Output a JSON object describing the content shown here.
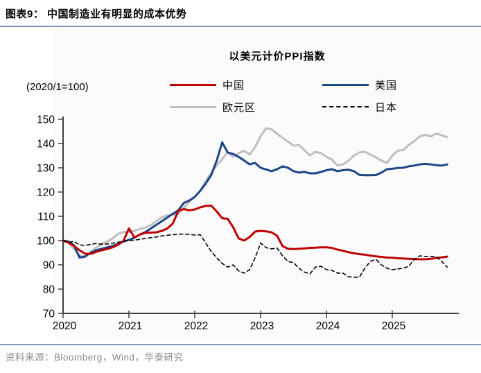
{
  "header": {
    "title": "图表9：  中国制造业有明显的成本优势"
  },
  "chart": {
    "title": "以美元计价PPI指数",
    "unit_note": "(2020/1=100)",
    "legend": [
      {
        "label": "中国",
        "color": "#C00000",
        "dashed": false
      },
      {
        "label": "美国",
        "color": "#1C4587",
        "dashed": false
      },
      {
        "label": "欧元区",
        "color": "#BFBFBF",
        "dashed": false
      },
      {
        "label": "日本",
        "color": "#000000",
        "dashed": true
      }
    ]
  },
  "chart_data": {
    "type": "line",
    "title": "以美元计价PPI指数",
    "subtitle": "(2020/1=100)",
    "x_start": "2020-01",
    "x_frequency": "monthly",
    "x_tick_labels": [
      "2020",
      "2021",
      "2022",
      "2023",
      "2024",
      "2025"
    ],
    "y_ticks": [
      70,
      80,
      90,
      100,
      110,
      120,
      130,
      140,
      150
    ],
    "ylim": [
      70,
      150
    ],
    "grid": false,
    "legend_position": "top",
    "series": [
      {
        "name": "中国",
        "color": "#C00000",
        "dashed": false,
        "values": [
          100,
          99.2,
          97.8,
          96.0,
          94.6,
          94.5,
          95.3,
          96.0,
          96.5,
          97.2,
          98.2,
          99.8,
          105.0,
          101.3,
          102.5,
          103.2,
          103.3,
          103.4,
          104.0,
          105.0,
          107.0,
          112.3,
          113.0,
          112.5,
          112.8,
          113.7,
          114.3,
          114.4,
          112.0,
          109.2,
          109.0,
          105.5,
          100.9,
          100.0,
          101.5,
          103.7,
          104.0,
          103.8,
          103.4,
          102.0,
          97.7,
          96.6,
          96.5,
          96.6,
          96.8,
          97.0,
          97.1,
          97.2,
          97.2,
          97.0,
          96.3,
          95.8,
          95.2,
          94.8,
          94.4,
          94.2,
          93.8,
          93.5,
          93.3,
          93.0,
          92.9,
          92.7,
          92.6,
          92.5,
          92.4,
          92.3,
          92.3,
          92.5,
          92.8,
          93.1,
          93.4
        ]
      },
      {
        "name": "美国",
        "color": "#1C4587",
        "dashed": false,
        "values": [
          100,
          99.6,
          98.0,
          93.0,
          93.4,
          95.0,
          96.0,
          96.6,
          97.2,
          97.8,
          98.6,
          99.6,
          100.3,
          101.2,
          102.5,
          103.5,
          105.0,
          106.5,
          108.0,
          109.5,
          111.0,
          112.5,
          115.5,
          116.5,
          118.0,
          120.5,
          123.5,
          127.0,
          133.0,
          140.5,
          136.3,
          135.7,
          134.5,
          133.0,
          131.4,
          132.0,
          130.0,
          129.3,
          128.6,
          129.4,
          130.6,
          130.0,
          128.6,
          128.0,
          128.3,
          127.7,
          127.7,
          128.3,
          129.0,
          129.4,
          128.6,
          129.0,
          129.2,
          128.6,
          127.1,
          126.9,
          126.9,
          127.0,
          128.0,
          129.4,
          129.6,
          129.9,
          130.0,
          130.6,
          130.9,
          131.4,
          131.6,
          131.4,
          131.1,
          130.9,
          131.4
        ]
      },
      {
        "name": "欧元区",
        "color": "#BFBFBF",
        "dashed": false,
        "values": [
          100,
          99.0,
          96.5,
          94.0,
          93.4,
          95.2,
          97.0,
          98.6,
          99.6,
          100.8,
          102.8,
          103.5,
          103.6,
          104.0,
          104.8,
          105.4,
          106.4,
          108.0,
          109.6,
          110.4,
          110.6,
          111.0,
          113.5,
          116.0,
          118.0,
          120.5,
          124.5,
          128.0,
          131.0,
          133.5,
          136.5,
          134.5,
          136.0,
          137.0,
          135.5,
          138.5,
          143.0,
          146.3,
          145.8,
          144.0,
          142.3,
          140.8,
          139.1,
          139.4,
          137.2,
          135.1,
          136.6,
          136.0,
          134.5,
          133.4,
          130.9,
          131.4,
          132.9,
          135.0,
          136.3,
          136.6,
          135.5,
          134.3,
          132.9,
          132.0,
          134.9,
          137.1,
          137.3,
          139.4,
          140.9,
          142.9,
          143.6,
          142.9,
          144.1,
          143.4,
          142.6
        ]
      },
      {
        "name": "日本",
        "color": "#000000",
        "dashed": true,
        "values": [
          100,
          99.3,
          99.6,
          98.2,
          98.0,
          98.4,
          98.8,
          98.5,
          98.6,
          98.9,
          99.3,
          99.8,
          100.0,
          100.2,
          100.5,
          100.9,
          101.2,
          101.5,
          101.9,
          102.2,
          102.4,
          102.6,
          102.7,
          102.5,
          102.3,
          102.4,
          99.0,
          95.5,
          92.9,
          90.6,
          89.1,
          90.0,
          87.5,
          86.6,
          88.0,
          92.9,
          99.0,
          97.1,
          96.6,
          96.9,
          93.7,
          91.4,
          90.9,
          88.6,
          87.0,
          86.3,
          89.1,
          89.4,
          88.0,
          87.7,
          86.6,
          86.6,
          85.1,
          84.9,
          84.9,
          88.6,
          91.4,
          92.3,
          90.0,
          88.6,
          88.0,
          88.3,
          88.6,
          89.4,
          92.3,
          93.7,
          93.5,
          93.4,
          93.4,
          91.4,
          89.1
        ]
      }
    ]
  },
  "footer": {
    "source": "资料来源：Bloomberg，Wind，华泰研究"
  },
  "colors": {
    "divider": "#7D99BC",
    "axis": "#404040",
    "source_text": "#8C8C8C",
    "card_bg": "#fbfbfb"
  }
}
